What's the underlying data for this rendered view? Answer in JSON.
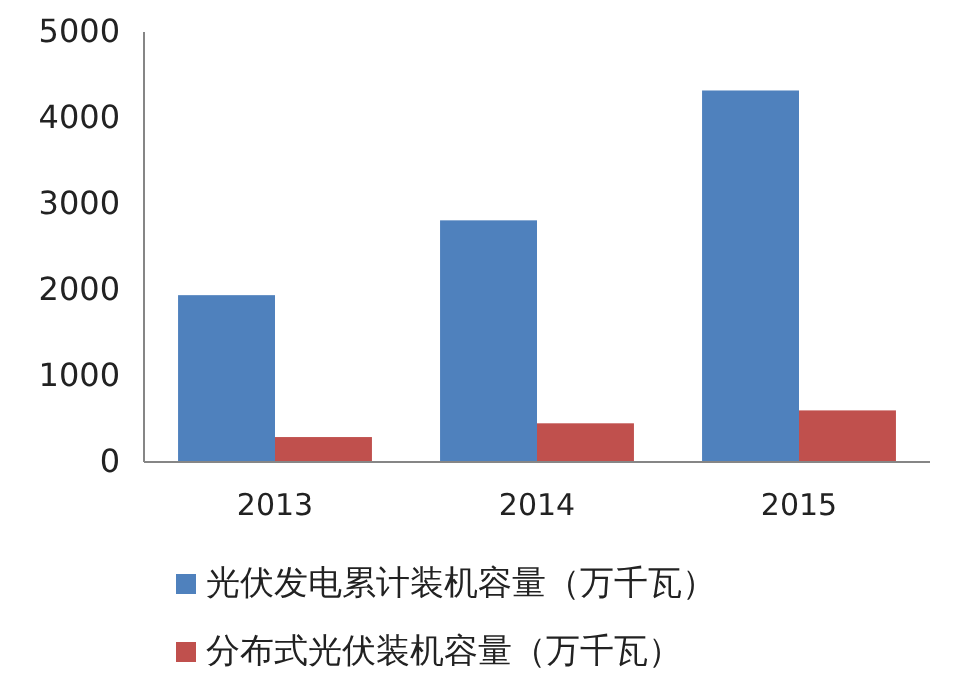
{
  "chart_data": {
    "type": "bar",
    "categories": [
      "2013",
      "2014",
      "2015"
    ],
    "series": [
      {
        "name": "光伏发电累计装机容量（万千瓦）",
        "color": "#4f81bd",
        "values": [
          1940,
          2810,
          4320
        ]
      },
      {
        "name": "分布式光伏装机容量（万千瓦）",
        "color": "#c0504d",
        "values": [
          290,
          450,
          600
        ]
      }
    ],
    "ylim": [
      0,
      5000
    ],
    "yticks": [
      0,
      1000,
      2000,
      3000,
      4000,
      5000
    ],
    "grid": false,
    "legend": "bottom"
  }
}
